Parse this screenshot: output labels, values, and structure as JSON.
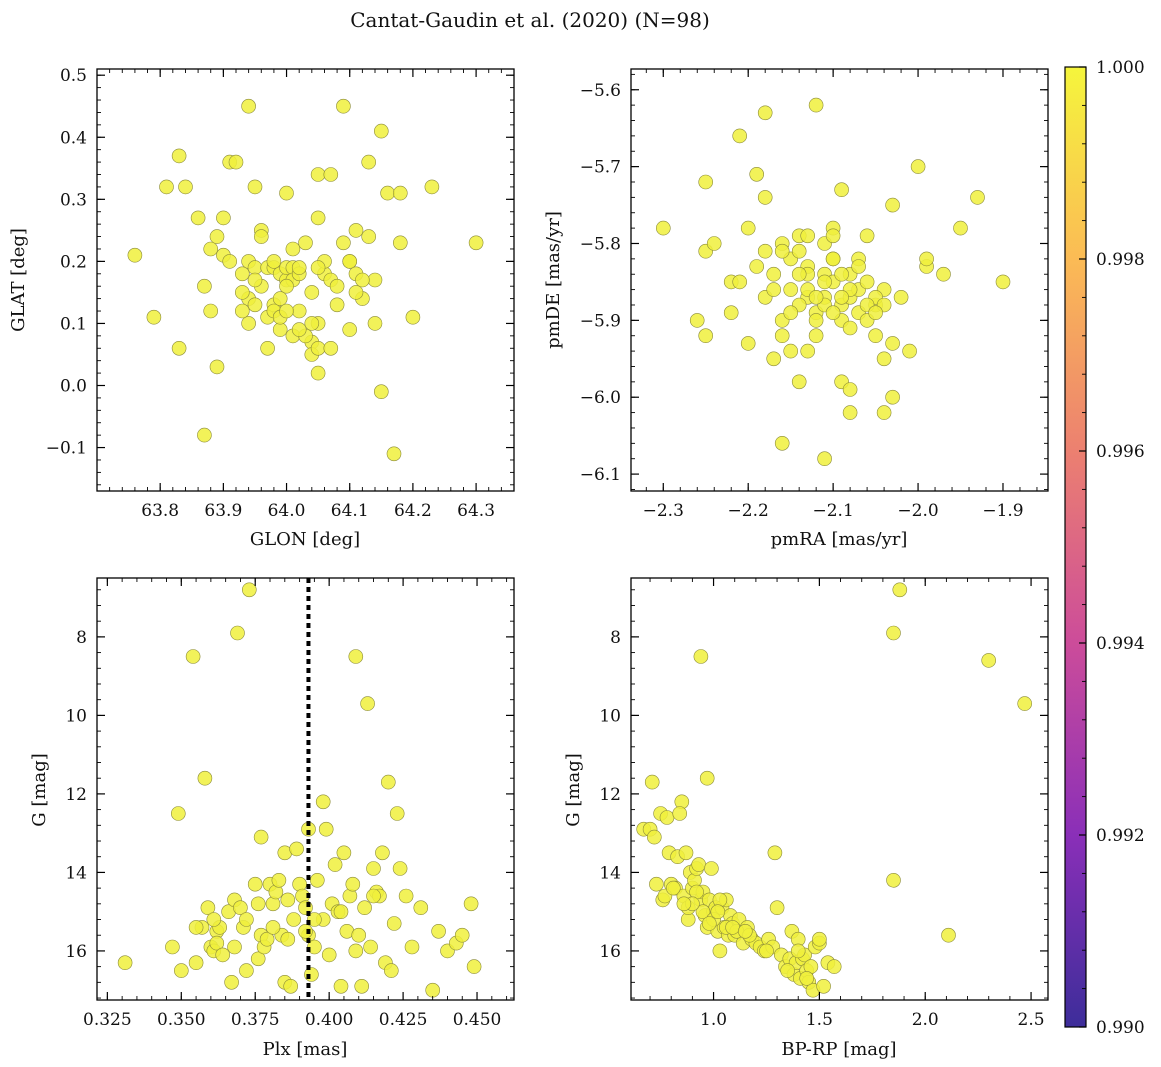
{
  "figure": {
    "title": "Cantat-Gaudin et al. (2020) (N=98)",
    "point_color": "#f0f03c"
  },
  "colorbar": {
    "min": 0.99,
    "max": 1.0,
    "ticks": [
      "0.990",
      "0.992",
      "0.994",
      "0.996",
      "0.998",
      "1.000"
    ],
    "colormap": "plasma",
    "colors": [
      "#3d2d9a",
      "#8a2fb8",
      "#cc4c9a",
      "#ec8070",
      "#fbbb55",
      "#f5f53c"
    ]
  },
  "chart_data": [
    {
      "type": "scatter",
      "id": "sky",
      "xlabel": "GLON [deg]",
      "ylabel": "GLAT [deg]",
      "xlim": [
        63.7,
        64.36
      ],
      "ylim": [
        -0.17,
        0.51
      ],
      "xticks": [
        63.8,
        63.9,
        64.0,
        64.1,
        64.2,
        64.3
      ],
      "xtick_labels": [
        "63.8",
        "63.9",
        "64.0",
        "64.1",
        "64.2",
        "64.3"
      ],
      "yticks": [
        -0.1,
        0.0,
        0.1,
        0.2,
        0.3,
        0.4,
        0.5
      ],
      "ytick_labels": [
        "−0.1",
        "0.0",
        "0.1",
        "0.2",
        "0.3",
        "0.4",
        "0.5"
      ],
      "x": [
        63.76,
        63.79,
        63.81,
        63.83,
        63.83,
        63.84,
        63.86,
        63.87,
        63.87,
        63.88,
        63.88,
        63.89,
        63.89,
        63.9,
        63.9,
        63.91,
        63.92,
        63.93,
        63.94,
        63.94,
        63.94,
        63.94,
        63.95,
        63.95,
        63.95,
        63.96,
        63.96,
        63.97,
        63.97,
        63.97,
        63.98,
        63.98,
        63.98,
        63.99,
        63.99,
        63.99,
        64.0,
        64.0,
        64.0,
        64.01,
        64.01,
        64.01,
        64.01,
        64.02,
        64.02,
        64.02,
        64.03,
        64.04,
        64.04,
        64.04,
        64.05,
        64.05,
        64.05,
        64.05,
        64.06,
        64.06,
        64.07,
        64.07,
        64.08,
        64.09,
        64.09,
        64.1,
        64.1,
        64.11,
        64.11,
        64.12,
        64.13,
        64.13,
        64.14,
        64.14,
        64.15,
        64.15,
        64.16,
        64.17,
        64.18,
        64.18,
        64.2,
        64.23,
        64.3,
        63.93,
        63.98,
        64.0,
        64.03,
        64.05,
        63.96,
        64.08,
        63.99,
        64.12,
        63.95,
        64.02,
        64.05,
        64.1,
        63.91,
        64.07,
        63.93,
        64.0,
        64.11,
        64.04
      ],
      "y": [
        0.21,
        0.11,
        0.32,
        0.06,
        0.37,
        0.32,
        0.27,
        0.16,
        -0.08,
        0.22,
        0.12,
        0.03,
        0.24,
        0.21,
        0.27,
        0.36,
        0.36,
        0.18,
        0.14,
        0.45,
        0.2,
        0.1,
        0.13,
        0.32,
        0.19,
        0.25,
        0.24,
        0.06,
        0.11,
        0.19,
        0.13,
        0.12,
        0.19,
        0.09,
        0.11,
        0.18,
        0.31,
        0.17,
        0.19,
        0.08,
        0.22,
        0.19,
        0.17,
        0.18,
        0.19,
        0.12,
        0.23,
        0.07,
        0.15,
        0.05,
        0.27,
        0.34,
        0.06,
        0.02,
        0.18,
        0.2,
        0.34,
        0.17,
        0.16,
        0.45,
        0.23,
        0.09,
        0.2,
        0.18,
        0.25,
        0.14,
        0.36,
        0.24,
        0.1,
        0.17,
        0.41,
        -0.01,
        0.31,
        -0.11,
        0.31,
        0.23,
        0.11,
        0.32,
        0.23,
        0.15,
        0.2,
        0.16,
        0.08,
        0.1,
        0.16,
        0.13,
        0.14,
        0.17,
        0.17,
        0.09,
        0.19,
        0.2,
        0.2,
        0.06,
        0.12,
        0.12,
        0.15,
        0.1
      ]
    },
    {
      "type": "scatter",
      "id": "pm",
      "xlabel": "pmRA [mas/yr]",
      "ylabel": "pmDE [mas/yr]",
      "xlim": [
        -2.338,
        -1.847
      ],
      "ylim": [
        -6.122,
        -5.573
      ],
      "xticks": [
        -2.3,
        -2.2,
        -2.1,
        -2.0,
        -1.9
      ],
      "xtick_labels": [
        "−2.3",
        "−2.2",
        "−2.1",
        "−2.0",
        "−1.9"
      ],
      "yticks": [
        -6.1,
        -6.0,
        -5.9,
        -5.8,
        -5.7,
        -5.6
      ],
      "ytick_labels": [
        "−6.1",
        "−6.0",
        "−5.9",
        "−5.8",
        "−5.7",
        "−5.6"
      ],
      "x": [
        -2.3,
        -2.26,
        -2.25,
        -2.25,
        -2.25,
        -2.24,
        -2.22,
        -2.22,
        -2.21,
        -2.21,
        -2.2,
        -2.19,
        -2.19,
        -2.18,
        -2.18,
        -2.18,
        -2.17,
        -2.17,
        -2.16,
        -2.16,
        -2.16,
        -2.15,
        -2.15,
        -2.15,
        -2.14,
        -2.14,
        -2.14,
        -2.13,
        -2.13,
        -2.13,
        -2.12,
        -2.12,
        -2.12,
        -2.11,
        -2.11,
        -2.11,
        -2.1,
        -2.1,
        -2.1,
        -2.09,
        -2.09,
        -2.09,
        -2.08,
        -2.08,
        -2.08,
        -2.08,
        -2.07,
        -2.07,
        -2.06,
        -2.06,
        -2.06,
        -2.05,
        -2.05,
        -2.04,
        -2.04,
        -2.04,
        -2.03,
        -2.03,
        -2.03,
        -2.02,
        -2.01,
        -2.0,
        -1.99,
        -1.99,
        -1.97,
        -1.95,
        -1.93,
        -1.9,
        -2.13,
        -2.11,
        -2.09,
        -2.17,
        -2.14,
        -2.1,
        -2.07,
        -2.05,
        -2.12,
        -2.16,
        -2.08,
        -2.11,
        -2.13,
        -2.09,
        -2.15,
        -2.06,
        -2.1,
        -2.08,
        -2.12,
        -2.2,
        -2.04,
        -2.18,
        -2.14,
        -2.1,
        -2.07,
        -2.11,
        -2.09,
        -2.13,
        -2.16,
        -2.05
      ],
      "y": [
        -5.78,
        -5.9,
        -5.72,
        -5.81,
        -5.92,
        -5.8,
        -5.85,
        -5.89,
        -5.66,
        -5.85,
        -5.78,
        -5.83,
        -5.71,
        -5.63,
        -5.87,
        -5.74,
        -5.84,
        -5.95,
        -6.06,
        -5.8,
        -5.9,
        -5.94,
        -5.82,
        -5.86,
        -5.79,
        -5.98,
        -5.81,
        -5.83,
        -5.94,
        -5.87,
        -5.62,
        -5.92,
        -5.89,
        -6.08,
        -5.8,
        -5.84,
        -5.78,
        -5.82,
        -5.79,
        -5.88,
        -5.98,
        -5.73,
        -5.87,
        -5.84,
        -6.02,
        -5.99,
        -5.86,
        -5.89,
        -5.9,
        -5.85,
        -5.79,
        -5.88,
        -5.92,
        -5.95,
        -6.02,
        -5.86,
        -5.93,
        -5.75,
        -6.0,
        -5.87,
        -5.94,
        -5.7,
        -5.83,
        -5.82,
        -5.84,
        -5.78,
        -5.74,
        -5.85,
        -5.86,
        -5.87,
        -5.9,
        -5.86,
        -5.88,
        -5.85,
        -5.82,
        -5.87,
        -5.9,
        -5.81,
        -5.86,
        -5.88,
        -5.84,
        -5.87,
        -5.89,
        -5.88,
        -5.89,
        -5.91,
        -5.87,
        -5.93,
        -5.88,
        -5.81,
        -5.84,
        -5.82,
        -5.83,
        -5.85,
        -5.84,
        -5.79,
        -5.92,
        -5.89
      ]
    },
    {
      "type": "scatter",
      "id": "plx",
      "xlabel": "Plx [mas]",
      "ylabel": "G [mag]",
      "xlim": [
        0.3215,
        0.4625
      ],
      "ylim": [
        17.25,
        6.5
      ],
      "xticks": [
        0.325,
        0.35,
        0.375,
        0.4,
        0.425,
        0.45
      ],
      "xtick_labels": [
        "0.325",
        "0.350",
        "0.375",
        "0.400",
        "0.425",
        "0.450"
      ],
      "yticks": [
        8,
        10,
        12,
        14,
        16
      ],
      "ytick_labels": [
        "8",
        "10",
        "12",
        "14",
        "16"
      ],
      "reference_line_x": 0.393,
      "x": [
        0.331,
        0.347,
        0.349,
        0.35,
        0.354,
        0.355,
        0.357,
        0.358,
        0.359,
        0.36,
        0.361,
        0.362,
        0.362,
        0.363,
        0.364,
        0.366,
        0.367,
        0.368,
        0.369,
        0.37,
        0.371,
        0.372,
        0.373,
        0.375,
        0.376,
        0.377,
        0.377,
        0.378,
        0.379,
        0.38,
        0.381,
        0.382,
        0.383,
        0.384,
        0.385,
        0.385,
        0.386,
        0.387,
        0.388,
        0.389,
        0.39,
        0.391,
        0.392,
        0.393,
        0.393,
        0.394,
        0.395,
        0.396,
        0.398,
        0.399,
        0.4,
        0.401,
        0.402,
        0.403,
        0.404,
        0.405,
        0.406,
        0.407,
        0.408,
        0.409,
        0.41,
        0.411,
        0.412,
        0.413,
        0.414,
        0.415,
        0.416,
        0.418,
        0.419,
        0.42,
        0.421,
        0.422,
        0.423,
        0.424,
        0.426,
        0.428,
        0.431,
        0.435,
        0.437,
        0.44,
        0.443,
        0.445,
        0.448,
        0.449,
        0.355,
        0.368,
        0.372,
        0.381,
        0.386,
        0.398,
        0.404,
        0.417,
        0.361,
        0.376,
        0.392,
        0.395,
        0.409,
        0.415
      ],
      "y": [
        16.3,
        15.9,
        12.5,
        16.5,
        8.5,
        16.3,
        15.4,
        11.6,
        14.9,
        15.9,
        16.0,
        15.5,
        15.8,
        15.4,
        16.1,
        15.0,
        16.8,
        14.7,
        7.9,
        14.9,
        15.4,
        16.5,
        6.8,
        14.3,
        16.2,
        13.1,
        15.6,
        15.9,
        15.7,
        14.3,
        14.8,
        14.5,
        14.2,
        15.6,
        16.8,
        13.5,
        14.7,
        16.9,
        15.2,
        13.4,
        14.3,
        14.6,
        14.9,
        12.9,
        15.6,
        16.6,
        15.9,
        14.2,
        12.2,
        12.9,
        16.1,
        14.8,
        13.8,
        15.0,
        16.9,
        13.5,
        15.5,
        14.6,
        14.3,
        8.5,
        15.6,
        16.9,
        14.9,
        9.7,
        15.9,
        13.9,
        14.5,
        13.5,
        16.3,
        11.7,
        16.5,
        15.3,
        12.5,
        13.9,
        14.6,
        15.9,
        14.9,
        17.0,
        15.5,
        16.0,
        15.8,
        15.6,
        14.8,
        16.4,
        15.4,
        15.9,
        15.2,
        15.4,
        15.7,
        15.2,
        15.0,
        14.6,
        15.2,
        14.8,
        15.5,
        15.2,
        16.0,
        14.6
      ]
    },
    {
      "type": "scatter",
      "id": "cmd",
      "xlabel": "BP-RP [mag]",
      "ylabel": "G [mag]",
      "xlim": [
        0.61,
        2.58
      ],
      "ylim": [
        17.25,
        6.5
      ],
      "xticks": [
        1.0,
        1.5,
        2.0,
        2.5
      ],
      "xtick_labels": [
        "1.0",
        "1.5",
        "2.0",
        "2.5"
      ],
      "yticks": [
        8,
        10,
        12,
        14,
        16
      ],
      "ytick_labels": [
        "8",
        "10",
        "12",
        "14",
        "16"
      ],
      "x": [
        0.67,
        0.7,
        0.72,
        0.73,
        0.75,
        0.76,
        0.78,
        0.79,
        0.8,
        0.82,
        0.83,
        0.85,
        0.86,
        0.87,
        0.88,
        0.89,
        0.9,
        0.91,
        0.92,
        0.93,
        0.94,
        0.95,
        0.96,
        0.97,
        0.98,
        0.99,
        1.0,
        1.01,
        1.02,
        1.03,
        1.04,
        1.05,
        1.06,
        1.07,
        1.08,
        1.09,
        1.1,
        1.12,
        1.14,
        1.16,
        1.18,
        1.2,
        1.22,
        1.24,
        1.26,
        1.28,
        1.3,
        1.32,
        1.34,
        1.36,
        1.37,
        1.38,
        1.39,
        1.4,
        1.41,
        1.42,
        1.43,
        1.44,
        1.45,
        1.46,
        1.47,
        1.48,
        1.5,
        1.52,
        1.54,
        1.57,
        0.71,
        0.84,
        0.94,
        0.97,
        1.29,
        1.85,
        1.85,
        1.88,
        2.11,
        2.3,
        2.47,
        0.88,
        0.92,
        0.95,
        1.0,
        1.03,
        0.9,
        0.98,
        1.06,
        1.11,
        1.17,
        1.25,
        1.35,
        1.4,
        1.44,
        1.5,
        0.77,
        0.81,
        0.86,
        1.02,
        1.09,
        1.15
      ],
      "y": [
        12.9,
        12.9,
        13.1,
        14.3,
        12.5,
        14.7,
        12.6,
        13.5,
        14.3,
        14.4,
        13.6,
        12.2,
        14.6,
        13.5,
        15.2,
        14.0,
        14.4,
        14.2,
        13.9,
        13.8,
        14.7,
        14.5,
        15.1,
        15.4,
        14.7,
        13.9,
        15.0,
        14.9,
        15.5,
        16.0,
        14.9,
        15.4,
        14.7,
        15.6,
        15.1,
        15.3,
        15.6,
        15.2,
        15.8,
        15.4,
        15.7,
        15.8,
        15.9,
        16.0,
        15.7,
        15.9,
        14.9,
        16.1,
        16.4,
        16.2,
        15.5,
        16.6,
        16.3,
        15.7,
        16.7,
        16.2,
        16.1,
        16.5,
        16.8,
        16.4,
        17.0,
        15.9,
        15.8,
        16.9,
        16.3,
        16.4,
        11.7,
        12.5,
        8.5,
        11.6,
        13.5,
        7.9,
        14.2,
        6.8,
        15.6,
        8.6,
        9.7,
        14.9,
        14.5,
        15.0,
        15.2,
        14.7,
        14.8,
        15.3,
        15.4,
        15.5,
        15.6,
        16.0,
        16.5,
        16.0,
        16.7,
        15.7,
        14.6,
        14.4,
        14.8,
        15.0,
        15.4,
        15.5
      ]
    }
  ]
}
